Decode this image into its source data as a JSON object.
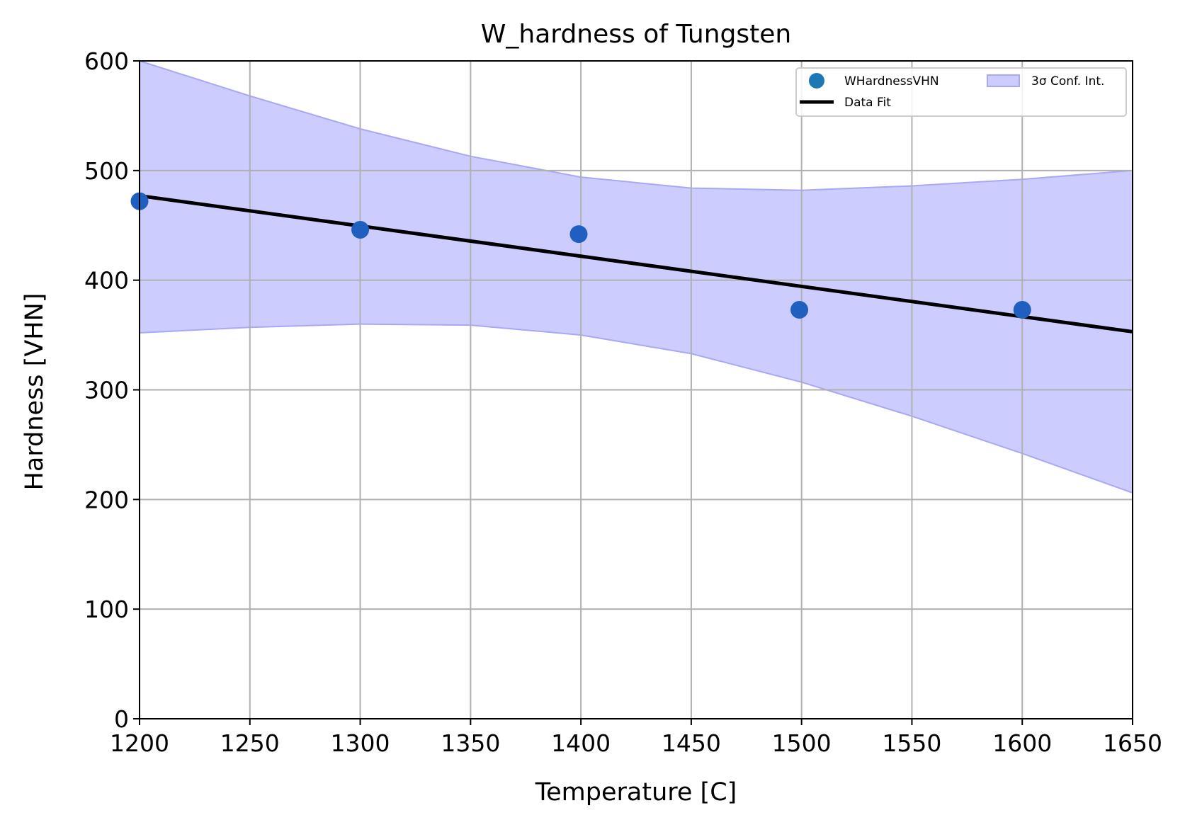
{
  "chart_data": {
    "type": "scatter",
    "title": "W_hardness of Tungsten",
    "xlabel": "Temperature [C]",
    "ylabel": "Hardness [VHN]",
    "xlim": [
      1200,
      1650
    ],
    "ylim": [
      0,
      600
    ],
    "xticks": [
      1200,
      1250,
      1300,
      1350,
      1400,
      1450,
      1500,
      1550,
      1600,
      1650
    ],
    "yticks": [
      0,
      100,
      200,
      300,
      400,
      500,
      600
    ],
    "grid": true,
    "legend_position": "top-right",
    "points": {
      "name": "WHardnessVHN",
      "color": "#1f5fbf",
      "x": [
        1200,
        1300,
        1399,
        1499,
        1600
      ],
      "y": [
        472,
        446,
        442,
        373,
        373
      ]
    },
    "fit": {
      "name": "Data Fit",
      "color": "#000000",
      "x": [
        1200,
        1650
      ],
      "y": [
        477,
        353
      ]
    },
    "band": {
      "name": "3σ Conf. Int.",
      "fill_color": "#ccccff",
      "edge_color": "#a8a8f5",
      "x": [
        1200,
        1250,
        1300,
        1350,
        1400,
        1450,
        1500,
        1550,
        1600,
        1650
      ],
      "upper": [
        600,
        568,
        538,
        513,
        494,
        484,
        482,
        486,
        492,
        500
      ],
      "lower": [
        352,
        357,
        360,
        359,
        350,
        333,
        307,
        276,
        242,
        206
      ]
    }
  }
}
